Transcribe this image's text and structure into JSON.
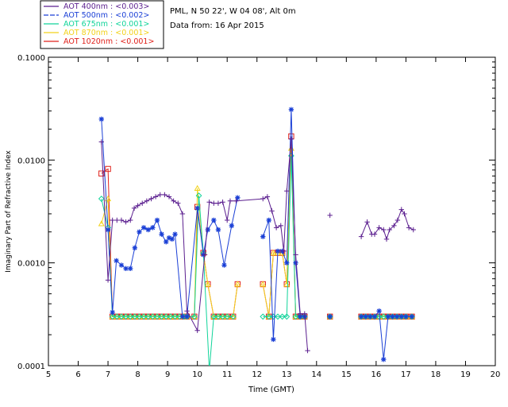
{
  "header": {
    "site": "PML, N 50 22', W 04 08', Alt 0m",
    "date": "Data from: 16 Apr 2015"
  },
  "chart_data": {
    "type": "line",
    "xlabel": "Time (GMT)",
    "ylabel": "Imaginary Part of Refractive Index",
    "xlim": [
      5,
      20
    ],
    "ylim": [
      0.0001,
      0.1
    ],
    "yscale": "log",
    "grid": false,
    "legend_position": "top-left",
    "x_ticks": [
      5,
      6,
      7,
      8,
      9,
      10,
      11,
      12,
      13,
      14,
      15,
      16,
      17,
      18,
      19,
      20
    ],
    "y_ticks": [
      {
        "value": 0.0001,
        "label": "0.0001"
      },
      {
        "value": 0.001,
        "label": "0.0010"
      },
      {
        "value": 0.01,
        "label": "0.0100"
      },
      {
        "value": 0.1,
        "label": "0.1000"
      }
    ],
    "series": [
      {
        "name": "AOT 400nm : <0.003>",
        "color": "#5b1f8f",
        "marker": "plus",
        "points": [
          [
            6.78,
            0.015
          ],
          [
            7.0,
            0.00068
          ],
          [
            7.15,
            0.0026
          ],
          [
            7.3,
            0.0026
          ],
          [
            7.45,
            0.0026
          ],
          [
            7.6,
            0.0025
          ],
          [
            7.75,
            0.0026
          ],
          [
            7.88,
            0.0034
          ],
          [
            8.0,
            0.0036
          ],
          [
            8.15,
            0.0038
          ],
          [
            8.3,
            0.004
          ],
          [
            8.45,
            0.0042
          ],
          [
            8.6,
            0.0044
          ],
          [
            8.75,
            0.0046
          ],
          [
            8.9,
            0.0046
          ],
          [
            9.05,
            0.0044
          ],
          [
            9.2,
            0.004
          ],
          [
            9.35,
            0.0038
          ],
          [
            9.5,
            0.003
          ],
          [
            9.65,
            0.00034
          ],
          [
            10.0,
            0.00022
          ],
          [
            10.25,
            0.0012
          ],
          [
            10.4,
            0.0039
          ],
          [
            10.55,
            0.0038
          ],
          [
            10.7,
            0.0038
          ],
          [
            10.85,
            0.0039
          ],
          [
            11.0,
            0.0026
          ],
          [
            11.1,
            0.004
          ],
          [
            11.3,
            0.004
          ],
          [
            12.2,
            0.0042
          ],
          [
            12.35,
            0.0044
          ],
          [
            12.5,
            0.0032
          ],
          [
            12.65,
            0.0022
          ],
          [
            12.8,
            0.0023
          ],
          [
            12.9,
            0.0013
          ],
          [
            13.0,
            0.005
          ],
          [
            13.15,
            0.016
          ],
          [
            13.3,
            0.0012
          ],
          [
            13.45,
            0.00032
          ],
          [
            13.6,
            0.00032
          ],
          [
            13.7,
            0.00014
          ],
          null,
          [
            14.45,
            0.0029
          ],
          null,
          [
            15.5,
            0.0018
          ],
          [
            15.7,
            0.0025
          ],
          [
            15.85,
            0.0019
          ],
          [
            15.95,
            0.0019
          ],
          [
            16.1,
            0.0022
          ],
          [
            16.25,
            0.0021
          ],
          [
            16.35,
            0.0017
          ],
          [
            16.45,
            0.0021
          ],
          [
            16.6,
            0.0023
          ],
          [
            16.72,
            0.0026
          ],
          [
            16.85,
            0.0033
          ],
          [
            16.95,
            0.003
          ],
          [
            17.1,
            0.0022
          ],
          [
            17.25,
            0.0021
          ]
        ]
      },
      {
        "name": "AOT 500nm : <0.002>",
        "color": "#1a3fd6",
        "marker": "asterisk",
        "points": [
          [
            6.78,
            0.025
          ],
          [
            7.0,
            0.0021
          ],
          [
            7.15,
            0.00033
          ],
          [
            7.28,
            0.00105
          ],
          [
            7.45,
            0.00095
          ],
          [
            7.6,
            0.00088
          ],
          [
            7.75,
            0.00088
          ],
          [
            7.9,
            0.0014
          ],
          [
            8.05,
            0.002
          ],
          [
            8.2,
            0.0022
          ],
          [
            8.35,
            0.0021
          ],
          [
            8.5,
            0.0022
          ],
          [
            8.65,
            0.0026
          ],
          [
            8.8,
            0.0019
          ],
          [
            8.95,
            0.0016
          ],
          [
            9.05,
            0.00175
          ],
          [
            9.15,
            0.0017
          ],
          [
            9.25,
            0.0019
          ],
          [
            9.5,
            0.0003
          ],
          [
            9.65,
            0.0003
          ],
          [
            10.0,
            0.0034
          ],
          [
            10.2,
            0.0012
          ],
          [
            10.35,
            0.0021
          ],
          [
            10.55,
            0.0026
          ],
          [
            10.7,
            0.0021
          ],
          [
            10.9,
            0.00095
          ],
          [
            11.15,
            0.0023
          ],
          [
            11.35,
            0.0043
          ],
          null,
          [
            12.2,
            0.0018
          ],
          [
            12.4,
            0.0026
          ],
          [
            12.55,
            0.00018
          ],
          [
            12.7,
            0.0013
          ],
          [
            12.85,
            0.0013
          ],
          [
            13.0,
            0.001
          ],
          [
            13.15,
            0.031
          ],
          [
            13.3,
            0.001
          ],
          [
            13.45,
            0.0003
          ],
          [
            13.6,
            0.0003
          ],
          null,
          [
            14.45,
            0.0003
          ],
          null,
          [
            15.5,
            0.0003
          ],
          [
            15.65,
            0.0003
          ],
          [
            15.8,
            0.0003
          ],
          [
            15.95,
            0.0003
          ],
          [
            16.1,
            0.00034
          ],
          [
            16.25,
            0.000115
          ],
          [
            16.4,
            0.0003
          ],
          [
            16.55,
            0.0003
          ],
          [
            16.7,
            0.0003
          ],
          [
            16.85,
            0.0003
          ],
          [
            17.0,
            0.0003
          ],
          [
            17.2,
            0.0003
          ]
        ]
      },
      {
        "name": "AOT 675nm : <0.001>",
        "color": "#10d49a",
        "marker": "diamond",
        "points": [
          [
            6.78,
            0.0042
          ],
          [
            7.0,
            0.0022
          ],
          [
            7.15,
            0.0003
          ],
          [
            7.3,
            0.0003
          ],
          [
            7.45,
            0.0003
          ],
          [
            7.6,
            0.0003
          ],
          [
            7.75,
            0.0003
          ],
          [
            7.9,
            0.0003
          ],
          [
            8.05,
            0.0003
          ],
          [
            8.2,
            0.0003
          ],
          [
            8.35,
            0.0003
          ],
          [
            8.5,
            0.0003
          ],
          [
            8.65,
            0.0003
          ],
          [
            8.8,
            0.0003
          ],
          [
            8.95,
            0.0003
          ],
          [
            9.1,
            0.0003
          ],
          [
            9.25,
            0.0003
          ],
          [
            9.4,
            0.0003
          ],
          [
            9.55,
            0.0003
          ],
          [
            9.65,
            0.0003
          ],
          [
            9.9,
            0.0003
          ],
          [
            10.05,
            0.0045
          ],
          [
            10.2,
            0.00125
          ],
          [
            10.4,
            9e-05
          ],
          [
            10.55,
            0.0003
          ],
          [
            10.7,
            0.0003
          ],
          [
            10.85,
            0.0003
          ],
          [
            11.0,
            0.0003
          ],
          [
            11.2,
            0.0003
          ],
          null,
          [
            12.2,
            0.0003
          ],
          [
            12.4,
            0.0003
          ],
          [
            12.55,
            0.0003
          ],
          [
            12.7,
            0.0003
          ],
          [
            12.85,
            0.0003
          ],
          [
            13.0,
            0.0003
          ],
          [
            13.15,
            0.011
          ],
          [
            13.3,
            0.0003
          ],
          [
            13.45,
            0.0003
          ],
          [
            13.6,
            0.0003
          ],
          null,
          [
            14.45,
            0.0003
          ],
          null,
          [
            15.5,
            0.0003
          ],
          [
            15.65,
            0.0003
          ],
          [
            15.8,
            0.0003
          ],
          [
            15.95,
            0.0003
          ],
          [
            16.1,
            0.0003
          ],
          [
            16.25,
            0.0003
          ],
          [
            16.4,
            0.0003
          ],
          [
            16.55,
            0.0003
          ],
          [
            16.7,
            0.0003
          ],
          [
            16.85,
            0.0003
          ],
          [
            17.0,
            0.0003
          ],
          [
            17.2,
            0.0003
          ]
        ]
      },
      {
        "name": "AOT 870nm : <0.001>",
        "color": "#f2d21a",
        "marker": "triangle",
        "points": [
          [
            6.78,
            0.0024
          ],
          [
            7.0,
            0.0042
          ],
          [
            7.15,
            0.0003
          ],
          [
            7.3,
            0.0003
          ],
          [
            7.45,
            0.0003
          ],
          [
            7.6,
            0.0003
          ],
          [
            7.75,
            0.0003
          ],
          [
            7.9,
            0.0003
          ],
          [
            8.05,
            0.0003
          ],
          [
            8.2,
            0.0003
          ],
          [
            8.35,
            0.0003
          ],
          [
            8.5,
            0.0003
          ],
          [
            8.65,
            0.0003
          ],
          [
            8.8,
            0.0003
          ],
          [
            8.95,
            0.0003
          ],
          [
            9.1,
            0.0003
          ],
          [
            9.25,
            0.0003
          ],
          [
            9.4,
            0.0003
          ],
          [
            9.55,
            0.0003
          ],
          [
            9.65,
            0.0003
          ],
          [
            9.9,
            0.0003
          ],
          [
            10.0,
            0.0053
          ],
          [
            10.2,
            0.00125
          ],
          [
            10.35,
            0.00062
          ],
          [
            10.55,
            0.0003
          ],
          [
            10.7,
            0.0003
          ],
          [
            10.85,
            0.0003
          ],
          [
            11.0,
            0.0003
          ],
          [
            11.2,
            0.0003
          ],
          [
            11.35,
            0.00062
          ],
          null,
          [
            12.2,
            0.00062
          ],
          [
            12.4,
            0.0003
          ],
          [
            12.55,
            0.00125
          ],
          [
            12.7,
            0.00125
          ],
          [
            12.85,
            0.00125
          ],
          [
            13.0,
            0.00062
          ],
          [
            13.15,
            0.013
          ],
          [
            13.3,
            0.0003
          ],
          [
            13.45,
            0.0003
          ],
          [
            13.6,
            0.0003
          ],
          null,
          [
            14.45,
            0.0003
          ],
          null,
          [
            15.5,
            0.0003
          ],
          [
            15.65,
            0.0003
          ],
          [
            15.8,
            0.0003
          ],
          [
            15.95,
            0.0003
          ],
          [
            16.1,
            0.0003
          ],
          [
            16.25,
            0.0003
          ],
          [
            16.4,
            0.0003
          ],
          [
            16.55,
            0.0003
          ],
          [
            16.7,
            0.0003
          ],
          [
            16.85,
            0.0003
          ],
          [
            17.0,
            0.0003
          ],
          [
            17.2,
            0.0003
          ]
        ]
      },
      {
        "name": "AOT 1020nm : <0.001>",
        "color": "#e0201a",
        "marker": "square",
        "points": [
          [
            6.78,
            0.0074
          ],
          [
            7.0,
            0.0082
          ],
          [
            7.15,
            0.0003
          ],
          [
            7.3,
            0.0003
          ],
          [
            7.45,
            0.0003
          ],
          [
            7.6,
            0.0003
          ],
          [
            7.75,
            0.0003
          ],
          [
            7.9,
            0.0003
          ],
          [
            8.05,
            0.0003
          ],
          [
            8.2,
            0.0003
          ],
          [
            8.35,
            0.0003
          ],
          [
            8.5,
            0.0003
          ],
          [
            8.65,
            0.0003
          ],
          [
            8.8,
            0.0003
          ],
          [
            8.95,
            0.0003
          ],
          [
            9.1,
            0.0003
          ],
          [
            9.25,
            0.0003
          ],
          [
            9.4,
            0.0003
          ],
          [
            9.55,
            0.0003
          ],
          [
            9.65,
            0.0003
          ],
          [
            9.9,
            0.0003
          ],
          [
            10.0,
            0.0035
          ],
          [
            10.2,
            0.00125
          ],
          [
            10.35,
            0.00062
          ],
          [
            10.55,
            0.0003
          ],
          [
            10.7,
            0.0003
          ],
          [
            10.85,
            0.0003
          ],
          [
            11.0,
            0.0003
          ],
          [
            11.2,
            0.0003
          ],
          [
            11.35,
            0.00062
          ],
          null,
          [
            12.2,
            0.00062
          ],
          [
            12.4,
            0.0003
          ],
          [
            12.55,
            0.00125
          ],
          [
            12.7,
            0.00125
          ],
          [
            12.85,
            0.00125
          ],
          [
            13.0,
            0.00062
          ],
          [
            13.15,
            0.017
          ],
          [
            13.3,
            0.0003
          ],
          [
            13.45,
            0.0003
          ],
          [
            13.6,
            0.0003
          ],
          null,
          [
            14.45,
            0.0003
          ],
          null,
          [
            15.5,
            0.0003
          ],
          [
            15.65,
            0.0003
          ],
          [
            15.8,
            0.0003
          ],
          [
            15.95,
            0.0003
          ],
          [
            16.1,
            0.0003
          ],
          [
            16.25,
            0.0003
          ],
          [
            16.4,
            0.0003
          ],
          [
            16.55,
            0.0003
          ],
          [
            16.7,
            0.0003
          ],
          [
            16.85,
            0.0003
          ],
          [
            17.0,
            0.0003
          ],
          [
            17.2,
            0.0003
          ]
        ]
      }
    ]
  }
}
